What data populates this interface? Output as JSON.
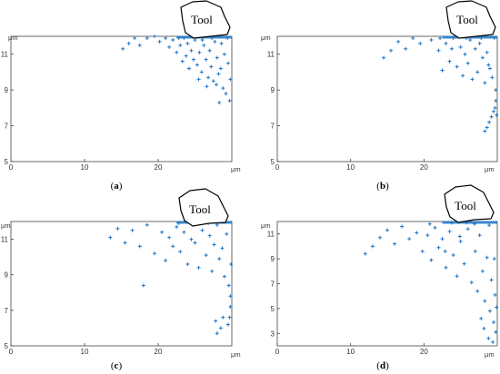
{
  "figure": {
    "panels": [
      {
        "id": "a",
        "caption_open": "(",
        "caption_letter": "a",
        "caption_close": ")",
        "tool_label": "Tool",
        "x_unit": "μm",
        "y_unit": "μm",
        "x_ticks": [
          "0",
          "10",
          "20"
        ],
        "y_ticks": [
          "5",
          "7",
          "9",
          "11"
        ]
      },
      {
        "id": "b",
        "caption_open": "(",
        "caption_letter": "b",
        "caption_close": ")",
        "tool_label": "Tool",
        "x_unit": "μm",
        "y_unit": "μm",
        "x_ticks": [
          "0",
          "10",
          "20"
        ],
        "y_ticks": [
          "5",
          "7",
          "9",
          "11"
        ]
      },
      {
        "id": "c",
        "caption_open": "(",
        "caption_letter": "c",
        "caption_close": ")",
        "tool_label": "Tool",
        "x_unit": "μm",
        "y_unit": "μm",
        "x_ticks": [
          "0",
          "10",
          "20"
        ],
        "y_ticks": [
          "5",
          "7",
          "9",
          "11"
        ]
      },
      {
        "id": "d",
        "caption_open": "(",
        "caption_letter": "d",
        "caption_close": ")",
        "tool_label": "Tool",
        "x_unit": "μm",
        "y_unit": "μm",
        "x_ticks": [
          "0",
          "10",
          "20"
        ],
        "y_ticks": [
          "3",
          "5",
          "7",
          "9",
          "11"
        ]
      }
    ]
  },
  "chart_data": [
    {
      "type": "scatter",
      "panel": "a",
      "marker": "+",
      "color": "#1f77c8",
      "xlim": [
        0,
        30
      ],
      "ylim": [
        5,
        12
      ],
      "grid": false,
      "x_ticks": [
        0,
        10,
        20
      ],
      "y_ticks": [
        5,
        7,
        9,
        11
      ],
      "series": [
        {
          "points": [
            [
              15.2,
              11.3
            ],
            [
              16.0,
              11.6
            ],
            [
              16.8,
              11.9
            ],
            [
              17.5,
              11.5
            ],
            [
              18.5,
              11.9
            ],
            [
              19.5,
              12.0
            ],
            [
              20.2,
              11.7
            ],
            [
              21.0,
              11.9
            ],
            [
              21.5,
              11.4
            ],
            [
              22.0,
              11.8
            ],
            [
              22.5,
              11.1
            ],
            [
              23.0,
              11.5
            ],
            [
              23.5,
              11.9
            ],
            [
              23.8,
              10.9
            ],
            [
              24.0,
              11.6
            ],
            [
              24.5,
              11.2
            ],
            [
              24.8,
              10.7
            ],
            [
              25.0,
              11.8
            ],
            [
              25.3,
              10.4
            ],
            [
              25.6,
              11.1
            ],
            [
              25.9,
              10.0
            ],
            [
              26.2,
              11.5
            ],
            [
              26.5,
              10.7
            ],
            [
              26.8,
              9.7
            ],
            [
              27.0,
              11.2
            ],
            [
              27.2,
              10.3
            ],
            [
              27.5,
              9.5
            ],
            [
              27.7,
              11.7
            ],
            [
              28.0,
              10.8
            ],
            [
              28.2,
              9.9
            ],
            [
              28.5,
              10.2
            ],
            [
              28.8,
              9.1
            ],
            [
              29.0,
              11.0
            ],
            [
              29.2,
              8.8
            ],
            [
              29.5,
              10.5
            ],
            [
              29.7,
              8.4
            ],
            [
              26.0,
              11.8
            ],
            [
              27.3,
              11.9
            ],
            [
              28.6,
              11.6
            ],
            [
              29.4,
              11.9
            ],
            [
              25.5,
              9.6
            ],
            [
              26.6,
              9.2
            ],
            [
              28.3,
              8.3
            ],
            [
              24.2,
              10.2
            ],
            [
              23.3,
              10.6
            ],
            [
              22.8,
              11.9
            ],
            [
              29.8,
              9.6
            ],
            [
              27.9,
              9.3
            ]
          ]
        }
      ]
    },
    {
      "type": "scatter",
      "panel": "b",
      "marker": "+",
      "color": "#1f77c8",
      "xlim": [
        0,
        30
      ],
      "ylim": [
        5,
        12
      ],
      "grid": false,
      "x_ticks": [
        0,
        10,
        20
      ],
      "y_ticks": [
        5,
        7,
        9,
        11
      ],
      "series": [
        {
          "points": [
            [
              14.5,
              10.8
            ],
            [
              15.5,
              11.2
            ],
            [
              16.5,
              11.7
            ],
            [
              17.5,
              11.3
            ],
            [
              18.5,
              11.9
            ],
            [
              19.5,
              11.6
            ],
            [
              21.0,
              11.8
            ],
            [
              22.0,
              11.2
            ],
            [
              22.5,
              10.1
            ],
            [
              23.0,
              11.6
            ],
            [
              23.5,
              10.6
            ],
            [
              24.0,
              11.9
            ],
            [
              24.5,
              10.3
            ],
            [
              25.0,
              11.4
            ],
            [
              25.3,
              9.8
            ],
            [
              25.6,
              11.0
            ],
            [
              26.0,
              10.5
            ],
            [
              26.3,
              11.8
            ],
            [
              26.6,
              9.6
            ],
            [
              27.0,
              11.3
            ],
            [
              27.3,
              10.0
            ],
            [
              27.6,
              11.6
            ],
            [
              28.0,
              10.8
            ],
            [
              28.3,
              9.4
            ],
            [
              28.6,
              11.1
            ],
            [
              29.0,
              10.2
            ],
            [
              29.3,
              9.7
            ],
            [
              29.6,
              11.9
            ],
            [
              29.8,
              9.0
            ],
            [
              29.8,
              8.4
            ],
            [
              29.7,
              8.0
            ],
            [
              29.5,
              7.8
            ],
            [
              29.2,
              7.5
            ],
            [
              28.9,
              7.2
            ],
            [
              28.6,
              6.9
            ],
            [
              28.3,
              6.7
            ],
            [
              29.9,
              7.6
            ],
            [
              25.8,
              11.9
            ],
            [
              27.8,
              11.9
            ],
            [
              23.8,
              11.3
            ],
            [
              22.2,
              11.9
            ],
            [
              28.8,
              10.4
            ]
          ]
        }
      ]
    },
    {
      "type": "scatter",
      "panel": "c",
      "marker": "+",
      "color": "#1f77c8",
      "xlim": [
        0,
        30
      ],
      "ylim": [
        5,
        12
      ],
      "grid": false,
      "x_ticks": [
        0,
        10,
        20
      ],
      "y_ticks": [
        5,
        7,
        9,
        11
      ],
      "series": [
        {
          "points": [
            [
              13.5,
              11.1
            ],
            [
              14.5,
              11.6
            ],
            [
              15.5,
              10.8
            ],
            [
              16.5,
              11.5
            ],
            [
              17.5,
              10.6
            ],
            [
              18.0,
              8.4
            ],
            [
              18.5,
              11.8
            ],
            [
              19.5,
              10.2
            ],
            [
              20.5,
              11.4
            ],
            [
              21.0,
              9.8
            ],
            [
              21.5,
              11.1
            ],
            [
              22.0,
              10.6
            ],
            [
              22.5,
              11.7
            ],
            [
              23.0,
              10.3
            ],
            [
              23.5,
              11.4
            ],
            [
              24.0,
              9.6
            ],
            [
              24.5,
              11.0
            ],
            [
              25.0,
              10.8
            ],
            [
              25.5,
              9.4
            ],
            [
              26.0,
              11.5
            ],
            [
              26.5,
              10.1
            ],
            [
              27.0,
              11.2
            ],
            [
              27.3,
              9.2
            ],
            [
              27.6,
              10.7
            ],
            [
              28.0,
              11.8
            ],
            [
              28.3,
              9.9
            ],
            [
              28.7,
              10.5
            ],
            [
              29.0,
              8.9
            ],
            [
              29.3,
              11.3
            ],
            [
              29.6,
              8.4
            ],
            [
              29.8,
              7.8
            ],
            [
              29.8,
              7.2
            ],
            [
              29.7,
              6.6
            ],
            [
              29.5,
              6.2
            ],
            [
              28.8,
              6.6
            ],
            [
              28.5,
              6.0
            ],
            [
              28.0,
              5.7
            ],
            [
              27.8,
              6.4
            ],
            [
              29.9,
              9.6
            ],
            [
              26.8,
              11.9
            ],
            [
              24.8,
              11.9
            ],
            [
              22.8,
              11.9
            ]
          ]
        }
      ]
    },
    {
      "type": "scatter",
      "panel": "d",
      "marker": "+",
      "color": "#1f77c8",
      "xlim": [
        0,
        30
      ],
      "ylim": [
        2,
        12
      ],
      "grid": false,
      "x_ticks": [
        0,
        10,
        20
      ],
      "y_ticks": [
        3,
        5,
        7,
        9,
        11
      ],
      "series": [
        {
          "points": [
            [
              12.0,
              9.4
            ],
            [
              13.0,
              10.0
            ],
            [
              14.0,
              10.7
            ],
            [
              15.0,
              11.3
            ],
            [
              16.0,
              10.2
            ],
            [
              17.0,
              11.6
            ],
            [
              18.0,
              10.6
            ],
            [
              19.0,
              11.1
            ],
            [
              19.8,
              9.6
            ],
            [
              20.5,
              10.9
            ],
            [
              21.0,
              8.9
            ],
            [
              21.5,
              11.5
            ],
            [
              22.0,
              9.9
            ],
            [
              22.5,
              10.6
            ],
            [
              23.0,
              8.3
            ],
            [
              23.5,
              11.2
            ],
            [
              24.0,
              9.3
            ],
            [
              24.5,
              7.6
            ],
            [
              25.0,
              10.4
            ],
            [
              25.5,
              8.6
            ],
            [
              26.0,
              11.4
            ],
            [
              26.5,
              7.1
            ],
            [
              27.0,
              9.6
            ],
            [
              27.3,
              6.4
            ],
            [
              27.6,
              10.9
            ],
            [
              28.0,
              8.0
            ],
            [
              28.3,
              5.6
            ],
            [
              28.6,
              9.1
            ],
            [
              29.0,
              4.8
            ],
            [
              29.2,
              7.3
            ],
            [
              29.5,
              3.9
            ],
            [
              29.7,
              6.1
            ],
            [
              29.8,
              3.1
            ],
            [
              29.9,
              5.1
            ],
            [
              28.8,
              2.6
            ],
            [
              28.2,
              3.4
            ],
            [
              27.8,
              4.2
            ],
            [
              29.4,
              2.3
            ],
            [
              25.8,
              11.9
            ],
            [
              23.8,
              11.9
            ],
            [
              20.8,
              11.8
            ],
            [
              28.9,
              11.7
            ],
            [
              26.9,
              11.8
            ],
            [
              24.9,
              10.8
            ],
            [
              22.9,
              9.6
            ],
            [
              29.6,
              9.0
            ]
          ]
        }
      ]
    }
  ]
}
